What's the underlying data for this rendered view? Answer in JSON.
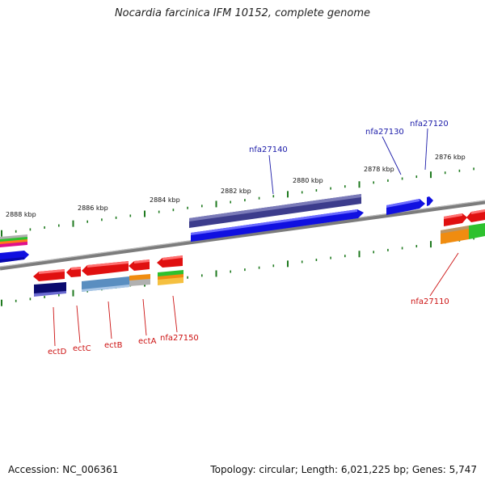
{
  "title": "Nocardia farcinica IFM 10152, complete genome",
  "footer": {
    "accession": "Accession: NC_006361",
    "summary": "Topology: circular; Length: 6,021,225 bp; Genes: 5,747"
  },
  "ticks": [
    "2888 kbp",
    "2886 kbp",
    "2884 kbp",
    "2882 kbp",
    "2880 kbp",
    "2878 kbp",
    "2876 kbp"
  ],
  "gene_labels": {
    "nfa27140": "nfa27140",
    "nfa27130": "nfa27130",
    "nfa27120": "nfa27120",
    "nfa27110": "nfa27110",
    "ectD": "ectD",
    "ectC": "ectC",
    "ectB": "ectB",
    "ectA": "ectA",
    "nfa27150": "nfa27150"
  },
  "colors": {
    "forward_label": "#1a1aa8",
    "reverse_label": "#cc1111",
    "tick": "#1f7a1f",
    "backbone": "#808080",
    "cds_blue": "#1010e0",
    "cds_purple": "#3c3c8c",
    "cds_red": "#e01010",
    "cds_navy": "#0a0a6e",
    "cds_steel": "#5a8ec0",
    "cds_orange": "#f08c10",
    "cds_green": "#2ec12e"
  }
}
